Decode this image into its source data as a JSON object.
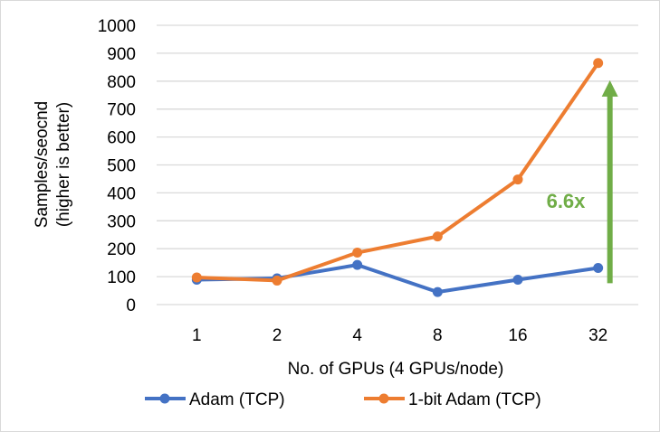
{
  "chart_data": {
    "type": "line",
    "categories": [
      "1",
      "2",
      "4",
      "8",
      "16",
      "32"
    ],
    "xlabel": "No. of GPUs (4 GPUs/node)",
    "ylabel": [
      "Samples/seocnd",
      "(higher is better)"
    ],
    "ylim": [
      0,
      1000
    ],
    "yticks": [
      0,
      100,
      200,
      300,
      400,
      500,
      600,
      700,
      800,
      900,
      1000
    ],
    "grid": true,
    "legend": "bottom",
    "series": [
      {
        "name": "Adam (TCP)",
        "color": "#4472C4",
        "values": [
          89,
          94,
          142,
          45,
          89,
          131
        ]
      },
      {
        "name": "1-bit Adam (TCP)",
        "color": "#ED7D31",
        "values": [
          97,
          86,
          186,
          244,
          448,
          865
        ]
      }
    ],
    "annotation": {
      "text": "6.6x",
      "color": "#70AD47",
      "arrow_from": 222,
      "arrow_to": 790,
      "at_category": "32"
    }
  }
}
